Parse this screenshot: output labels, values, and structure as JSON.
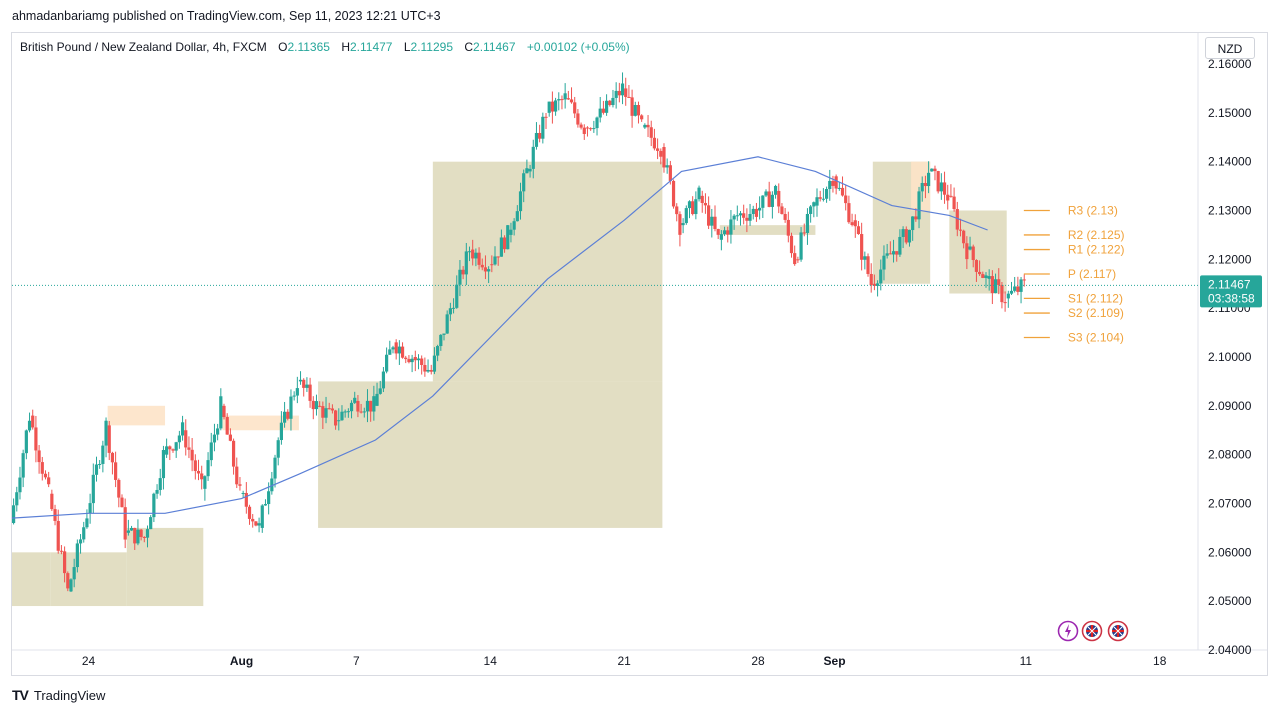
{
  "header": {
    "published_line": "ahmadanbariamg published on TradingView.com, Sep 11, 2023 12:21 UTC+3"
  },
  "legend": {
    "symbol": "British Pound / New Zealand Dollar, 4h, FXCM",
    "open_label": "O",
    "open": "2.11365",
    "high_label": "H",
    "high": "2.11477",
    "low_label": "L",
    "low": "2.11295",
    "close_label": "C",
    "close": "2.11467",
    "change": "+0.00102 (+0.05%)"
  },
  "currency_button": "NZD",
  "price_label": {
    "value": "2.11467",
    "countdown": "03:38:58"
  },
  "footer": {
    "logo": "TV",
    "brand": "TradingView"
  },
  "colors": {
    "up": "#26a69a",
    "down": "#ef5350",
    "ma": "#5b7fd6",
    "pivot": "#f0a23b",
    "zone": "#ddd8b8",
    "zone_top": "#fde3c8",
    "price": "#26a69a"
  },
  "icons": [
    "lightning-icon",
    "uk-flag-icon",
    "uk-flag-icon"
  ],
  "chart_data": {
    "type": "candlestick",
    "y_axis": {
      "min": 2.04,
      "max": 2.16,
      "ticks": [
        "2.16000",
        "2.15000",
        "2.14000",
        "2.13000",
        "2.12000",
        "2.11000",
        "2.10000",
        "2.09000",
        "2.08000",
        "2.07000",
        "2.06000",
        "2.05000",
        "2.04000"
      ]
    },
    "x_axis": {
      "ticks": [
        "24",
        "Aug",
        "7",
        "14",
        "21",
        "28",
        "Sep",
        "11",
        "18"
      ]
    },
    "moving_average": [
      [
        "2023-07-20",
        2.067
      ],
      [
        "2023-07-24",
        2.068
      ],
      [
        "2023-07-28",
        2.068
      ],
      [
        "2023-08-01",
        2.071
      ],
      [
        "2023-08-04",
        2.076
      ],
      [
        "2023-08-08",
        2.083
      ],
      [
        "2023-08-11",
        2.092
      ],
      [
        "2023-08-14",
        2.104
      ],
      [
        "2023-08-17",
        2.116
      ],
      [
        "2023-08-21",
        2.128
      ],
      [
        "2023-08-24",
        2.138
      ],
      [
        "2023-08-28",
        2.141
      ],
      [
        "2023-08-31",
        2.138
      ],
      [
        "2023-09-04",
        2.131
      ],
      [
        "2023-09-07",
        2.129
      ],
      [
        "2023-09-09",
        2.126
      ]
    ],
    "price_path": [
      [
        "2023-07-20",
        2.066
      ],
      [
        "2023-07-21",
        2.088
      ],
      [
        "2023-07-22",
        2.072
      ],
      [
        "2023-07-23",
        2.052
      ],
      [
        "2023-07-24",
        2.068
      ],
      [
        "2023-07-25",
        2.086
      ],
      [
        "2023-07-26",
        2.064
      ],
      [
        "2023-07-27",
        2.063
      ],
      [
        "2023-07-28",
        2.08
      ],
      [
        "2023-07-29",
        2.085
      ],
      [
        "2023-07-30",
        2.073
      ],
      [
        "2023-07-31",
        2.09
      ],
      [
        "2023-08-01",
        2.072
      ],
      [
        "2023-08-02",
        2.065
      ],
      [
        "2023-08-03",
        2.083
      ],
      [
        "2023-08-04",
        2.095
      ],
      [
        "2023-08-05",
        2.09
      ],
      [
        "2023-08-06",
        2.087
      ],
      [
        "2023-08-07",
        2.091
      ],
      [
        "2023-08-08",
        2.09
      ],
      [
        "2023-08-09",
        2.103
      ],
      [
        "2023-08-10",
        2.1
      ],
      [
        "2023-08-11",
        2.097
      ],
      [
        "2023-08-12",
        2.11
      ],
      [
        "2023-08-13",
        2.122
      ],
      [
        "2023-08-14",
        2.119
      ],
      [
        "2023-08-15",
        2.125
      ],
      [
        "2023-08-16",
        2.138
      ],
      [
        "2023-08-17",
        2.15
      ],
      [
        "2023-08-18",
        2.153
      ],
      [
        "2023-08-19",
        2.147
      ],
      [
        "2023-08-20",
        2.15
      ],
      [
        "2023-08-21",
        2.155
      ],
      [
        "2023-08-22",
        2.147
      ],
      [
        "2023-08-23",
        2.143
      ],
      [
        "2023-08-24",
        2.127
      ],
      [
        "2023-08-25",
        2.133
      ],
      [
        "2023-08-26",
        2.124
      ],
      [
        "2023-08-27",
        2.129
      ],
      [
        "2023-08-28",
        2.13
      ],
      [
        "2023-08-29",
        2.134
      ],
      [
        "2023-08-30",
        2.12
      ],
      [
        "2023-08-31",
        2.131
      ],
      [
        "2023-09-01",
        2.137
      ],
      [
        "2023-09-02",
        2.128
      ],
      [
        "2023-09-03",
        2.115
      ],
      [
        "2023-09-04",
        2.121
      ],
      [
        "2023-09-05",
        2.126
      ],
      [
        "2023-09-06",
        2.138
      ],
      [
        "2023-09-07",
        2.133
      ],
      [
        "2023-09-08",
        2.122
      ],
      [
        "2023-09-09",
        2.116
      ],
      [
        "2023-09-10",
        2.112
      ],
      [
        "2023-09-11",
        2.1147
      ]
    ],
    "pivot_levels": [
      {
        "label": "R3 (2.13)",
        "value": 2.13
      },
      {
        "label": "R2 (2.125)",
        "value": 2.125
      },
      {
        "label": "R1 (2.122)",
        "value": 2.122
      },
      {
        "label": "P (2.117)",
        "value": 2.117
      },
      {
        "label": "S1 (2.112)",
        "value": 2.112
      },
      {
        "label": "S2 (2.109)",
        "value": 2.109
      },
      {
        "label": "S3 (2.104)",
        "value": 2.104
      }
    ],
    "zones": [
      {
        "from": "2023-07-20",
        "to": "2023-07-22",
        "low": 2.049,
        "high": 2.06
      },
      {
        "from": "2023-07-22",
        "to": "2023-07-26",
        "low": 2.049,
        "high": 2.06
      },
      {
        "from": "2023-07-26",
        "to": "2023-07-30",
        "low": 2.049,
        "high": 2.065
      },
      {
        "from": "2023-08-05",
        "to": "2023-08-23",
        "low": 2.065,
        "high": 2.095
      },
      {
        "from": "2023-08-11",
        "to": "2023-08-23",
        "low": 2.095,
        "high": 2.14
      },
      {
        "from": "2023-08-26",
        "to": "2023-08-31",
        "low": 2.125,
        "high": 2.127
      },
      {
        "from": "2023-09-03",
        "to": "2023-09-06",
        "low": 2.115,
        "high": 2.14
      },
      {
        "from": "2023-09-07",
        "to": "2023-09-10",
        "low": 2.113,
        "high": 2.13
      }
    ],
    "last_price": 2.11467
  }
}
